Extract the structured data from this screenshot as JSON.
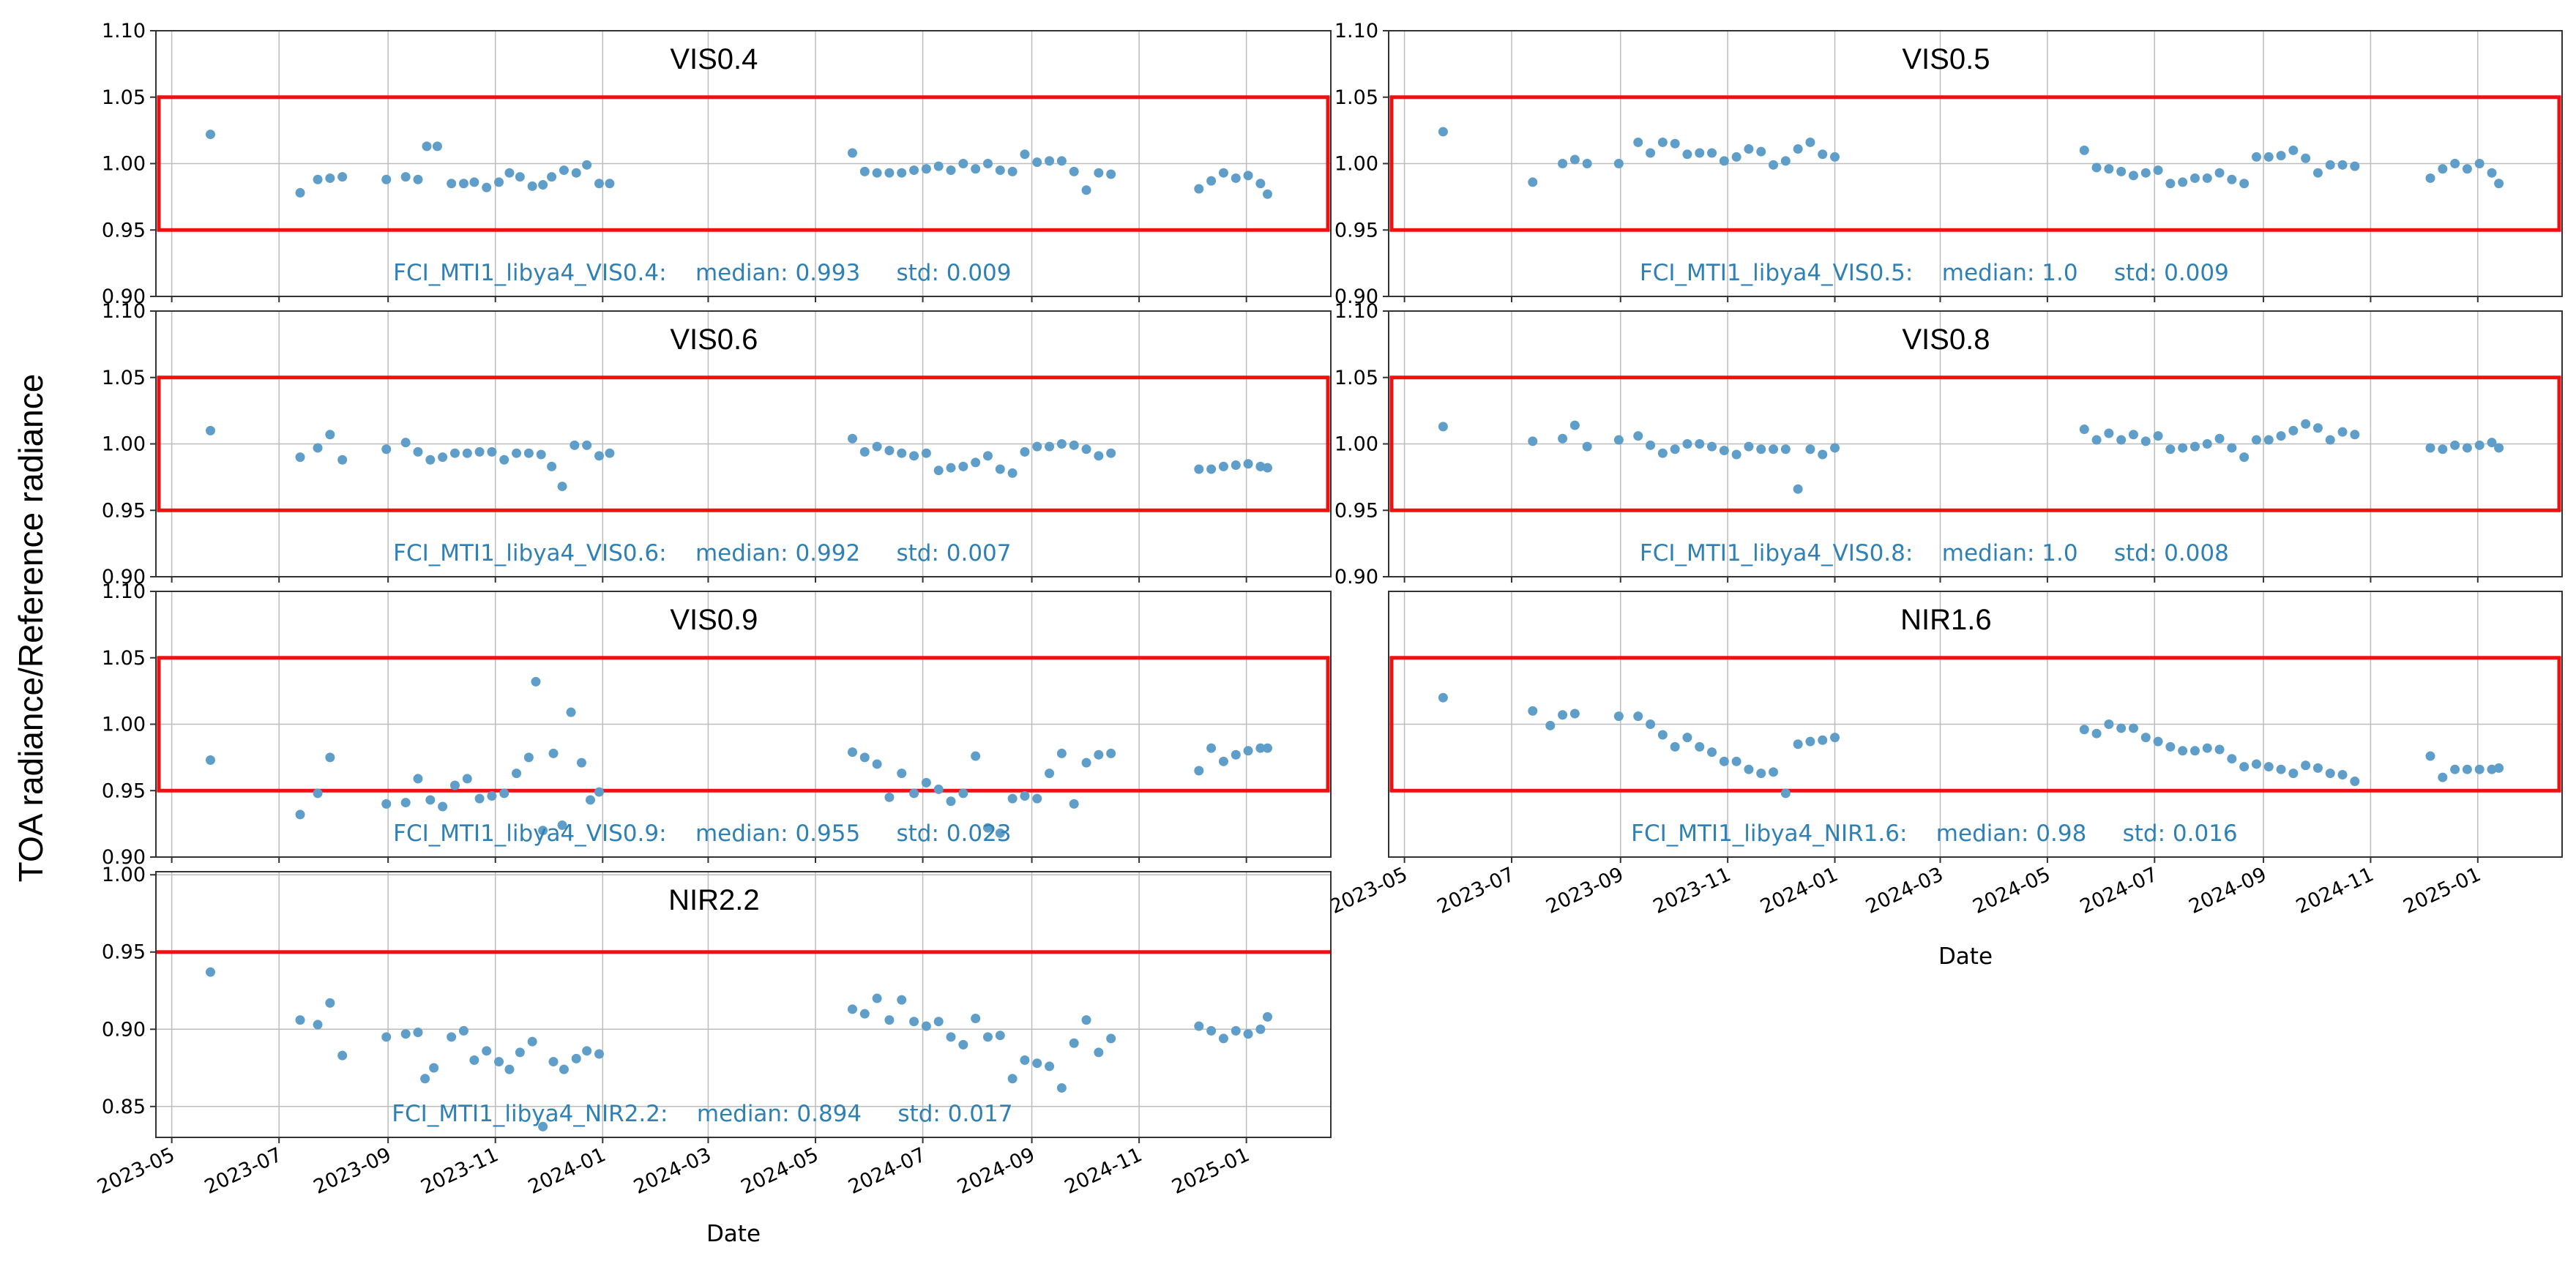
{
  "figure": {
    "ylabel": "TOA radiance/Reference radiance",
    "xlabel": "Date"
  },
  "colors": {
    "points": "#5f9ec8",
    "threshold": "#ee1111",
    "annotation": "#2f80b4",
    "grid": "#bdbdbd"
  },
  "chart_data": [
    {
      "type": "scatter",
      "title": "VIS0.4",
      "annotation": "FCI_MTI1_libya4_VIS0.4:    median: 0.993     std: 0.009",
      "median": 0.993,
      "std": 0.009,
      "ylim": [
        0.9,
        1.1
      ],
      "yticks": [
        "0.90",
        "0.95",
        "1.00",
        "1.05",
        "1.10"
      ],
      "xticks": [
        "2023-05",
        "2023-07",
        "2023-09",
        "2023-11",
        "2024-01",
        "2024-03",
        "2024-05",
        "2024-07",
        "2024-09",
        "2024-11",
        "2025-01"
      ],
      "show_xticks": false,
      "threshold_box": [
        0.95,
        1.05
      ],
      "x": [
        "2023-05-23",
        "2023-07-13",
        "2023-07-23",
        "2023-07-30",
        "2023-08-06",
        "2023-08-31",
        "2023-09-11",
        "2023-09-18",
        "2023-09-23",
        "2023-09-29",
        "2023-10-07",
        "2023-10-14",
        "2023-10-20",
        "2023-10-27",
        "2023-11-03",
        "2023-11-09",
        "2023-11-15",
        "2023-11-22",
        "2023-11-28",
        "2023-12-03",
        "2023-12-10",
        "2023-12-17",
        "2023-12-23",
        "2023-12-30",
        "2024-01-05",
        "2024-05-22",
        "2024-05-29",
        "2024-06-05",
        "2024-06-12",
        "2024-06-19",
        "2024-06-26",
        "2024-07-03",
        "2024-07-10",
        "2024-07-17",
        "2024-07-24",
        "2024-07-31",
        "2024-08-07",
        "2024-08-14",
        "2024-08-21",
        "2024-08-28",
        "2024-09-04",
        "2024-09-11",
        "2024-09-18",
        "2024-09-25",
        "2024-10-02",
        "2024-10-09",
        "2024-10-16",
        "2024-12-05",
        "2024-12-12",
        "2024-12-19",
        "2024-12-26",
        "2025-01-02",
        "2025-01-09",
        "2025-01-13"
      ],
      "y": [
        1.022,
        0.978,
        0.988,
        0.989,
        0.99,
        0.988,
        0.99,
        0.988,
        1.013,
        1.013,
        0.985,
        0.985,
        0.986,
        0.982,
        0.986,
        0.993,
        0.99,
        0.983,
        0.984,
        0.99,
        0.995,
        0.993,
        0.999,
        0.985,
        0.985,
        1.008,
        0.994,
        0.993,
        0.993,
        0.993,
        0.995,
        0.996,
        0.998,
        0.995,
        1.0,
        0.996,
        1.0,
        0.995,
        0.994,
        1.007,
        1.001,
        1.002,
        1.002,
        0.994,
        0.98,
        0.993,
        0.992,
        0.981,
        0.987,
        0.993,
        0.989,
        0.991,
        0.985,
        0.977
      ]
    },
    {
      "type": "scatter",
      "title": "VIS0.5",
      "annotation": "FCI_MTI1_libya4_VIS0.5:    median: 1.0     std: 0.009",
      "median": 1.0,
      "std": 0.009,
      "ylim": [
        0.9,
        1.1
      ],
      "yticks": [
        "0.90",
        "0.95",
        "1.00",
        "1.05",
        "1.10"
      ],
      "xticks": [
        "2023-05",
        "2023-07",
        "2023-09",
        "2023-11",
        "2024-01",
        "2024-03",
        "2024-05",
        "2024-07",
        "2024-09",
        "2024-11",
        "2025-01"
      ],
      "show_xticks": false,
      "threshold_box": [
        0.95,
        1.05
      ],
      "x": [
        "2023-05-23",
        "2023-07-13",
        "2023-07-30",
        "2023-08-06",
        "2023-08-13",
        "2023-08-31",
        "2023-09-11",
        "2023-09-18",
        "2023-09-25",
        "2023-10-02",
        "2023-10-09",
        "2023-10-16",
        "2023-10-23",
        "2023-10-30",
        "2023-11-06",
        "2023-11-13",
        "2023-11-20",
        "2023-11-27",
        "2023-12-04",
        "2023-12-11",
        "2023-12-18",
        "2023-12-25",
        "2024-01-01",
        "2024-05-22",
        "2024-05-29",
        "2024-06-05",
        "2024-06-12",
        "2024-06-19",
        "2024-06-26",
        "2024-07-03",
        "2024-07-10",
        "2024-07-17",
        "2024-07-24",
        "2024-07-31",
        "2024-08-07",
        "2024-08-14",
        "2024-08-21",
        "2024-08-28",
        "2024-09-04",
        "2024-09-11",
        "2024-09-18",
        "2024-09-25",
        "2024-10-02",
        "2024-10-09",
        "2024-10-16",
        "2024-10-23",
        "2024-12-05",
        "2024-12-12",
        "2024-12-19",
        "2024-12-26",
        "2025-01-02",
        "2025-01-09",
        "2025-01-13"
      ],
      "y": [
        1.024,
        0.986,
        1.0,
        1.003,
        1.0,
        1.0,
        1.016,
        1.008,
        1.016,
        1.015,
        1.007,
        1.008,
        1.008,
        1.002,
        1.005,
        1.011,
        1.009,
        0.999,
        1.002,
        1.011,
        1.016,
        1.007,
        1.005,
        1.01,
        0.997,
        0.996,
        0.994,
        0.991,
        0.993,
        0.995,
        0.985,
        0.986,
        0.989,
        0.989,
        0.993,
        0.988,
        0.985,
        1.005,
        1.005,
        1.006,
        1.01,
        1.004,
        0.993,
        0.999,
        0.999,
        0.998,
        0.989,
        0.996,
        1.0,
        0.996,
        1.0,
        0.993,
        0.985
      ]
    },
    {
      "type": "scatter",
      "title": "VIS0.6",
      "annotation": "FCI_MTI1_libya4_VIS0.6:    median: 0.992     std: 0.007",
      "median": 0.992,
      "std": 0.007,
      "ylim": [
        0.9,
        1.1
      ],
      "yticks": [
        "0.90",
        "0.95",
        "1.00",
        "1.05",
        "1.10"
      ],
      "xticks": [
        "2023-05",
        "2023-07",
        "2023-09",
        "2023-11",
        "2024-01",
        "2024-03",
        "2024-05",
        "2024-07",
        "2024-09",
        "2024-11",
        "2025-01"
      ],
      "show_xticks": false,
      "threshold_box": [
        0.95,
        1.05
      ],
      "x": [
        "2023-05-23",
        "2023-07-13",
        "2023-07-23",
        "2023-07-30",
        "2023-08-06",
        "2023-08-31",
        "2023-09-11",
        "2023-09-18",
        "2023-09-25",
        "2023-10-02",
        "2023-10-09",
        "2023-10-16",
        "2023-10-23",
        "2023-10-30",
        "2023-11-06",
        "2023-11-13",
        "2023-11-20",
        "2023-11-27",
        "2023-12-03",
        "2023-12-09",
        "2023-12-16",
        "2023-12-23",
        "2023-12-30",
        "2024-01-05",
        "2024-05-22",
        "2024-05-29",
        "2024-06-05",
        "2024-06-12",
        "2024-06-19",
        "2024-06-26",
        "2024-07-03",
        "2024-07-10",
        "2024-07-17",
        "2024-07-24",
        "2024-07-31",
        "2024-08-07",
        "2024-08-14",
        "2024-08-21",
        "2024-08-28",
        "2024-09-04",
        "2024-09-11",
        "2024-09-18",
        "2024-09-25",
        "2024-10-02",
        "2024-10-09",
        "2024-10-16",
        "2024-12-05",
        "2024-12-12",
        "2024-12-19",
        "2024-12-26",
        "2025-01-02",
        "2025-01-09",
        "2025-01-13"
      ],
      "y": [
        1.01,
        0.99,
        0.997,
        1.007,
        0.988,
        0.996,
        1.001,
        0.994,
        0.988,
        0.99,
        0.993,
        0.993,
        0.994,
        0.994,
        0.988,
        0.993,
        0.993,
        0.992,
        0.983,
        0.968,
        0.999,
        0.999,
        0.991,
        0.993,
        1.004,
        0.994,
        0.998,
        0.995,
        0.993,
        0.991,
        0.993,
        0.98,
        0.982,
        0.983,
        0.986,
        0.991,
        0.981,
        0.978,
        0.994,
        0.998,
        0.998,
        1.0,
        0.999,
        0.996,
        0.991,
        0.993,
        0.981,
        0.981,
        0.983,
        0.984,
        0.985,
        0.983,
        0.982
      ]
    },
    {
      "type": "scatter",
      "title": "VIS0.8",
      "annotation": "FCI_MTI1_libya4_VIS0.8:    median: 1.0     std: 0.008",
      "median": 1.0,
      "std": 0.008,
      "ylim": [
        0.9,
        1.1
      ],
      "yticks": [
        "0.90",
        "0.95",
        "1.00",
        "1.05",
        "1.10"
      ],
      "xticks": [
        "2023-05",
        "2023-07",
        "2023-09",
        "2023-11",
        "2024-01",
        "2024-03",
        "2024-05",
        "2024-07",
        "2024-09",
        "2024-11",
        "2025-01"
      ],
      "show_xticks": false,
      "threshold_box": [
        0.95,
        1.05
      ],
      "x": [
        "2023-05-23",
        "2023-07-13",
        "2023-07-30",
        "2023-08-06",
        "2023-08-13",
        "2023-08-31",
        "2023-09-11",
        "2023-09-18",
        "2023-09-25",
        "2023-10-02",
        "2023-10-09",
        "2023-10-16",
        "2023-10-23",
        "2023-10-30",
        "2023-11-06",
        "2023-11-13",
        "2023-11-20",
        "2023-11-27",
        "2023-12-04",
        "2023-12-11",
        "2023-12-18",
        "2023-12-25",
        "2024-01-01",
        "2024-05-22",
        "2024-05-29",
        "2024-06-05",
        "2024-06-12",
        "2024-06-19",
        "2024-06-26",
        "2024-07-03",
        "2024-07-10",
        "2024-07-17",
        "2024-07-24",
        "2024-07-31",
        "2024-08-07",
        "2024-08-14",
        "2024-08-21",
        "2024-08-28",
        "2024-09-04",
        "2024-09-11",
        "2024-09-18",
        "2024-09-25",
        "2024-10-02",
        "2024-10-09",
        "2024-10-16",
        "2024-10-23",
        "2024-12-05",
        "2024-12-12",
        "2024-12-19",
        "2024-12-26",
        "2025-01-02",
        "2025-01-09",
        "2025-01-13"
      ],
      "y": [
        1.013,
        1.002,
        1.004,
        1.014,
        0.998,
        1.003,
        1.006,
        0.999,
        0.993,
        0.996,
        1.0,
        1.0,
        0.998,
        0.995,
        0.992,
        0.998,
        0.996,
        0.996,
        0.996,
        0.966,
        0.996,
        0.992,
        0.997,
        1.011,
        1.003,
        1.008,
        1.003,
        1.007,
        1.002,
        1.006,
        0.996,
        0.997,
        0.998,
        1.0,
        1.004,
        0.997,
        0.99,
        1.003,
        1.003,
        1.006,
        1.01,
        1.015,
        1.012,
        1.003,
        1.009,
        1.007,
        0.997,
        0.996,
        0.999,
        0.997,
        0.999,
        1.001,
        0.997
      ]
    },
    {
      "type": "scatter",
      "title": "VIS0.9",
      "annotation": "FCI_MTI1_libya4_VIS0.9:    median: 0.955     std: 0.023",
      "median": 0.955,
      "std": 0.023,
      "ylim": [
        0.9,
        1.1
      ],
      "yticks": [
        "0.90",
        "0.95",
        "1.00",
        "1.05",
        "1.10"
      ],
      "xticks": [
        "2023-05",
        "2023-07",
        "2023-09",
        "2023-11",
        "2024-01",
        "2024-03",
        "2024-05",
        "2024-07",
        "2024-09",
        "2024-11",
        "2025-01"
      ],
      "show_xticks": false,
      "threshold_box": [
        0.95,
        1.05
      ],
      "x": [
        "2023-05-23",
        "2023-07-13",
        "2023-07-23",
        "2023-07-30",
        "2023-08-31",
        "2023-09-11",
        "2023-09-18",
        "2023-09-25",
        "2023-10-02",
        "2023-10-09",
        "2023-10-16",
        "2023-10-23",
        "2023-10-30",
        "2023-11-06",
        "2023-11-13",
        "2023-11-20",
        "2023-11-24",
        "2023-11-28",
        "2023-12-04",
        "2023-12-09",
        "2023-12-14",
        "2023-12-20",
        "2023-12-25",
        "2023-12-30",
        "2024-05-22",
        "2024-05-29",
        "2024-06-05",
        "2024-06-12",
        "2024-06-19",
        "2024-06-26",
        "2024-07-03",
        "2024-07-10",
        "2024-07-17",
        "2024-07-24",
        "2024-07-31",
        "2024-08-07",
        "2024-08-14",
        "2024-08-21",
        "2024-08-28",
        "2024-09-04",
        "2024-09-11",
        "2024-09-18",
        "2024-09-25",
        "2024-10-02",
        "2024-10-09",
        "2024-10-16",
        "2024-12-05",
        "2024-12-12",
        "2024-12-19",
        "2024-12-26",
        "2025-01-02",
        "2025-01-09",
        "2025-01-13"
      ],
      "y": [
        0.973,
        0.932,
        0.948,
        0.975,
        0.94,
        0.941,
        0.959,
        0.943,
        0.938,
        0.954,
        0.959,
        0.944,
        0.946,
        0.948,
        0.963,
        0.975,
        1.032,
        0.92,
        0.978,
        0.924,
        1.009,
        0.971,
        0.943,
        0.949,
        0.979,
        0.975,
        0.97,
        0.945,
        0.963,
        0.948,
        0.956,
        0.951,
        0.942,
        0.948,
        0.976,
        0.922,
        0.918,
        0.944,
        0.946,
        0.944,
        0.963,
        0.978,
        0.94,
        0.971,
        0.977,
        0.978,
        0.965,
        0.982,
        0.972,
        0.977,
        0.98,
        0.982,
        0.982
      ]
    },
    {
      "type": "scatter",
      "title": "NIR1.6",
      "annotation": "FCI_MTI1_libya4_NIR1.6:    median: 0.98     std: 0.016",
      "median": 0.98,
      "std": 0.016,
      "ylim": [
        0.9,
        1.1
      ],
      "yticks": [],
      "xticks": [
        "2023-05",
        "2023-07",
        "2023-09",
        "2023-11",
        "2024-01",
        "2024-03",
        "2024-05",
        "2024-07",
        "2024-09",
        "2024-11",
        "2025-01"
      ],
      "show_xticks": true,
      "threshold_box": [
        0.95,
        1.05
      ],
      "x": [
        "2023-05-23",
        "2023-07-13",
        "2023-07-23",
        "2023-07-30",
        "2023-08-06",
        "2023-08-31",
        "2023-09-11",
        "2023-09-18",
        "2023-09-25",
        "2023-10-02",
        "2023-10-09",
        "2023-10-16",
        "2023-10-23",
        "2023-10-30",
        "2023-11-06",
        "2023-11-13",
        "2023-11-20",
        "2023-11-27",
        "2023-12-04",
        "2023-12-11",
        "2023-12-18",
        "2023-12-25",
        "2024-01-01",
        "2024-05-22",
        "2024-05-29",
        "2024-06-05",
        "2024-06-12",
        "2024-06-19",
        "2024-06-26",
        "2024-07-03",
        "2024-07-10",
        "2024-07-17",
        "2024-07-24",
        "2024-07-31",
        "2024-08-07",
        "2024-08-14",
        "2024-08-21",
        "2024-08-28",
        "2024-09-04",
        "2024-09-11",
        "2024-09-18",
        "2024-09-25",
        "2024-10-02",
        "2024-10-09",
        "2024-10-16",
        "2024-10-23",
        "2024-12-05",
        "2024-12-12",
        "2024-12-19",
        "2024-12-26",
        "2025-01-02",
        "2025-01-09",
        "2025-01-13"
      ],
      "y": [
        1.02,
        1.01,
        0.999,
        1.007,
        1.008,
        1.006,
        1.006,
        1.0,
        0.992,
        0.983,
        0.99,
        0.983,
        0.979,
        0.972,
        0.972,
        0.966,
        0.963,
        0.964,
        0.948,
        0.985,
        0.987,
        0.988,
        0.99,
        0.996,
        0.993,
        1.0,
        0.997,
        0.997,
        0.99,
        0.987,
        0.983,
        0.98,
        0.98,
        0.982,
        0.981,
        0.974,
        0.968,
        0.97,
        0.968,
        0.966,
        0.963,
        0.969,
        0.967,
        0.963,
        0.962,
        0.957,
        0.976,
        0.96,
        0.966,
        0.966,
        0.966,
        0.966,
        0.967
      ]
    },
    {
      "type": "scatter",
      "title": "NIR2.2",
      "annotation": "FCI_MTI1_libya4_NIR2.2:    median: 0.894     std: 0.017",
      "median": 0.894,
      "std": 0.017,
      "ylim": [
        0.83,
        1.002
      ],
      "yticks": [
        "0.85",
        "0.90",
        "0.95",
        "1.00"
      ],
      "xticks": [
        "2023-05",
        "2023-07",
        "2023-09",
        "2023-11",
        "2024-01",
        "2024-03",
        "2024-05",
        "2024-07",
        "2024-09",
        "2024-11",
        "2025-01"
      ],
      "show_xticks": true,
      "threshold_line": 0.95,
      "x": [
        "2023-05-23",
        "2023-07-13",
        "2023-07-23",
        "2023-07-30",
        "2023-08-06",
        "2023-08-31",
        "2023-09-11",
        "2023-09-18",
        "2023-09-22",
        "2023-09-27",
        "2023-10-07",
        "2023-10-14",
        "2023-10-20",
        "2023-10-27",
        "2023-11-03",
        "2023-11-09",
        "2023-11-15",
        "2023-11-22",
        "2023-11-28",
        "2023-12-04",
        "2023-12-10",
        "2023-12-17",
        "2023-12-23",
        "2023-12-30",
        "2024-05-22",
        "2024-05-29",
        "2024-06-05",
        "2024-06-12",
        "2024-06-19",
        "2024-06-26",
        "2024-07-03",
        "2024-07-10",
        "2024-07-17",
        "2024-07-24",
        "2024-07-31",
        "2024-08-07",
        "2024-08-14",
        "2024-08-21",
        "2024-08-28",
        "2024-09-04",
        "2024-09-11",
        "2024-09-18",
        "2024-09-25",
        "2024-10-02",
        "2024-10-09",
        "2024-10-16",
        "2024-12-05",
        "2024-12-12",
        "2024-12-19",
        "2024-12-26",
        "2025-01-02",
        "2025-01-09",
        "2025-01-13"
      ],
      "y": [
        0.937,
        0.906,
        0.903,
        0.917,
        0.883,
        0.895,
        0.897,
        0.898,
        0.868,
        0.875,
        0.895,
        0.899,
        0.88,
        0.886,
        0.879,
        0.874,
        0.885,
        0.892,
        0.837,
        0.879,
        0.874,
        0.881,
        0.886,
        0.884,
        0.913,
        0.91,
        0.92,
        0.906,
        0.919,
        0.905,
        0.902,
        0.905,
        0.895,
        0.89,
        0.907,
        0.895,
        0.896,
        0.868,
        0.88,
        0.878,
        0.876,
        0.862,
        0.891,
        0.906,
        0.885,
        0.894,
        0.902,
        0.899,
        0.894,
        0.899,
        0.897,
        0.9,
        0.908
      ]
    }
  ]
}
